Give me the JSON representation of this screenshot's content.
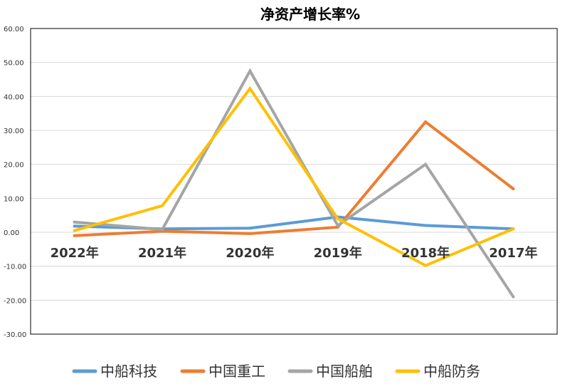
{
  "chart_data": {
    "type": "line",
    "title": "净资产增长率%",
    "categories": [
      "2022年",
      "2021年",
      "2020年",
      "2019年",
      "2018年",
      "2017年"
    ],
    "ylim": [
      -30,
      60
    ],
    "yticks": [
      "60.00",
      "50.00",
      "40.00",
      "30.00",
      "20.00",
      "10.00",
      "0.00",
      "-10.00",
      "-20.00",
      "-30.00"
    ],
    "ytick_values": [
      60,
      50,
      40,
      30,
      20,
      10,
      0,
      -10,
      -20,
      -30
    ],
    "grid": true,
    "legend_position": "bottom",
    "series": [
      {
        "name": "中船科技",
        "color": "#5B9BD5",
        "values": [
          1.8,
          1.0,
          1.2,
          4.5,
          2.0,
          1.0
        ]
      },
      {
        "name": "中国重工",
        "color": "#ED7D31",
        "values": [
          -1.0,
          0.3,
          -0.4,
          1.5,
          32.5,
          12.8
        ]
      },
      {
        "name": "中国船舶",
        "color": "#A5A5A5",
        "values": [
          3.0,
          0.8,
          47.5,
          2.0,
          20.0,
          -19.0
        ]
      },
      {
        "name": "中船防务",
        "color": "#FFC000",
        "values": [
          0.5,
          7.8,
          42.3,
          4.0,
          -9.8,
          1.0
        ]
      }
    ]
  }
}
